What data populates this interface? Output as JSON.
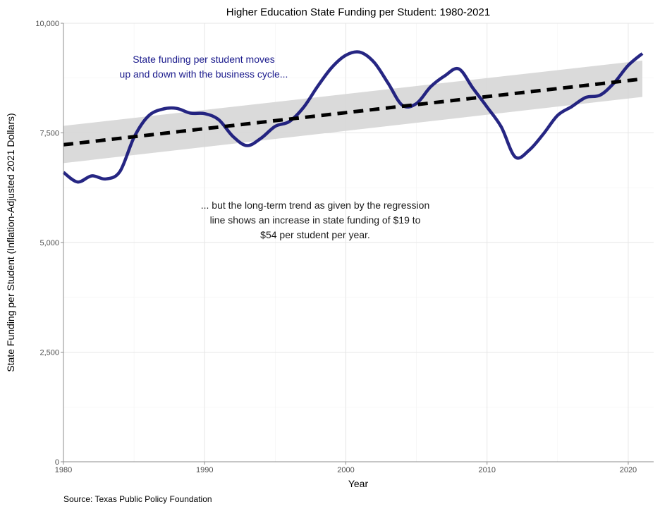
{
  "chart_data": {
    "type": "line",
    "title": "Higher Education State Funding per Student: 1980-2021",
    "xlabel": "Year",
    "ylabel": "State Funding per Student (Inflation-Adjusted 2021 Dollars)",
    "xlim": [
      1980,
      2021.8
    ],
    "ylim": [
      0,
      10000
    ],
    "x_ticks": [
      1980,
      1990,
      2000,
      2010,
      2020
    ],
    "y_ticks": [
      0,
      2500,
      5000,
      7500,
      10000
    ],
    "x_tick_labels": [
      "1980",
      "1990",
      "2000",
      "2010",
      "2020"
    ],
    "y_tick_labels": [
      "0",
      "2,500",
      "5,000",
      "7,500",
      "10,000"
    ],
    "grid": true,
    "series": [
      {
        "color": "#141478",
        "style": "solid",
        "x": [
          1980,
          1981,
          1982,
          1983,
          1984,
          1985,
          1986,
          1987,
          1988,
          1989,
          1990,
          1991,
          1992,
          1993,
          1994,
          1995,
          1996,
          1997,
          1998,
          1999,
          2000,
          2001,
          2002,
          2003,
          2004,
          2005,
          2006,
          2007,
          2008,
          2009,
          2010,
          2011,
          2012,
          2013,
          2014,
          2015,
          2016,
          2017,
          2018,
          2019,
          2020,
          2021
        ],
        "values": [
          6600,
          6380,
          6520,
          6450,
          6620,
          7400,
          7880,
          8040,
          8060,
          7950,
          7940,
          7800,
          7420,
          7210,
          7380,
          7650,
          7760,
          8080,
          8560,
          8990,
          9270,
          9340,
          9110,
          8630,
          8130,
          8170,
          8550,
          8800,
          8960,
          8520,
          8090,
          7640,
          6950,
          7110,
          7480,
          7900,
          8100,
          8310,
          8360,
          8640,
          9040,
          9310
        ]
      },
      {
        "color": "#000000",
        "style": "dashed",
        "x": [
          1980,
          2021
        ],
        "values": [
          7230,
          8730
        ]
      }
    ],
    "confidence_band": {
      "color": "#d3d3d3",
      "x": [
        1980,
        2021
      ],
      "lower": [
        6810,
        8320
      ],
      "upper": [
        7660,
        9150
      ]
    },
    "annotations": [
      {
        "lines": [
          "State funding per student moves",
          "up and down with the business cycle..."
        ],
        "color": "#1a1a8c"
      },
      {
        "lines": [
          "... but the long-term trend as given by the regression",
          "line shows an increase in state funding of $19 to",
          "$54 per student per year."
        ],
        "color": "#1a1a1a"
      }
    ],
    "caption": "Source: Texas Public Policy Foundation"
  }
}
